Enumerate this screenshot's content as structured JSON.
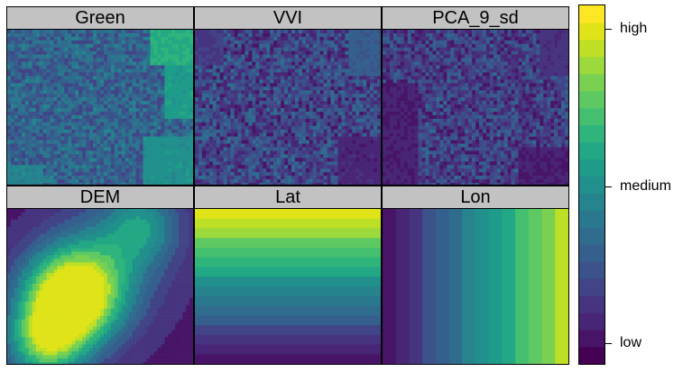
{
  "panels": [
    {
      "title": "Green"
    },
    {
      "title": "VVI"
    },
    {
      "title": "PCA_9_sd"
    },
    {
      "title": "DEM"
    },
    {
      "title": "Lat"
    },
    {
      "title": "Lon"
    }
  ],
  "legend": {
    "high": "high",
    "medium": "medium",
    "low": "low"
  },
  "colors": {
    "palette": [
      "#440154",
      "#481467",
      "#482576",
      "#463480",
      "#414487",
      "#3b528b",
      "#355f8d",
      "#2f6c8e",
      "#2a788e",
      "#25848e",
      "#21908c",
      "#1e9c89",
      "#22a884",
      "#2fb47c",
      "#44bf70",
      "#5ec962",
      "#7ad151",
      "#9bd93c",
      "#bddf26",
      "#dfe318",
      "#fde725"
    ],
    "strip_background": "#c2c2c2",
    "border": "#000000"
  }
}
